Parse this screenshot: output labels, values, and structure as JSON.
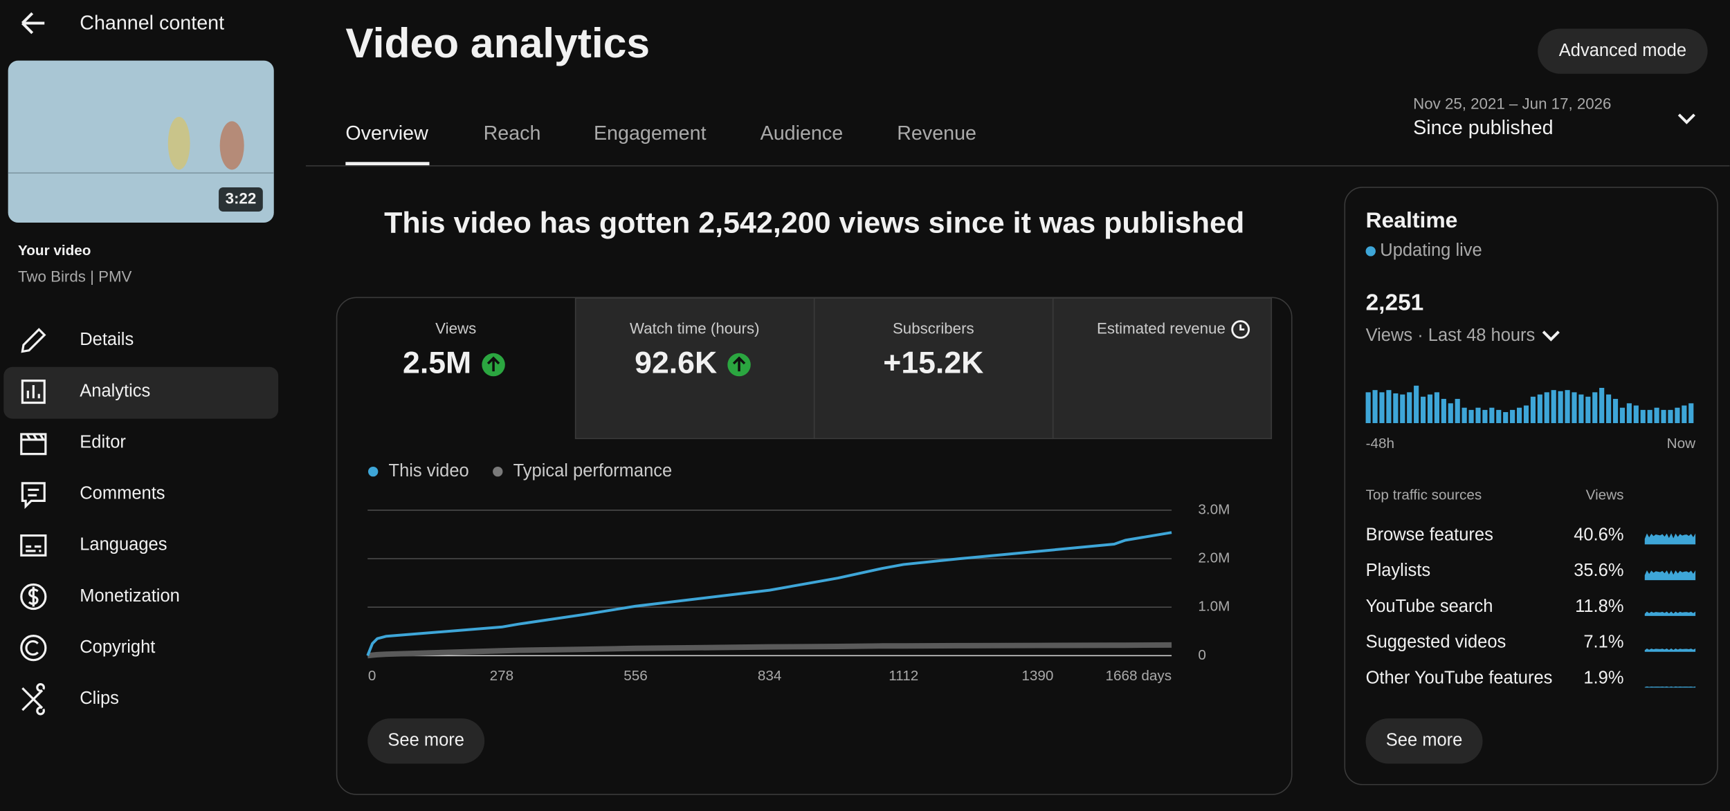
{
  "sidebar": {
    "title": "Channel content",
    "duration": "3:22",
    "video_label": "Your video",
    "video_title": "Two Birds | PMV",
    "nav": [
      "Details",
      "Analytics",
      "Editor",
      "Comments",
      "Languages",
      "Monetization",
      "Copyright",
      "Clips"
    ]
  },
  "header": {
    "title": "Video analytics",
    "button": "Advanced mode",
    "tabs": [
      "Overview",
      "Reach",
      "Engagement",
      "Audience",
      "Revenue"
    ],
    "date_range": "Nov 25, 2021 – Jun 17, 2026",
    "period": "Since published"
  },
  "headline": "This video has gotten 2,542,200 views since it was published",
  "metrics": [
    {
      "label": "Views",
      "value": "2.5M"
    },
    {
      "label": "Watch time (hours)",
      "value": "92.6K"
    },
    {
      "label": "Subscribers",
      "value": "+15.2K"
    },
    {
      "label": "Estimated revenue"
    }
  ],
  "chart": {
    "type": "line",
    "x": [
      0,
      10,
      20,
      39,
      278,
      313,
      450,
      556,
      834,
      976,
      1068,
      1112,
      1229,
      1390,
      1549,
      1572,
      1668
    ],
    "series": [
      {
        "name": "This video",
        "color": "#3ea6d8",
        "values": [
          0,
          250000,
          350000,
          400000,
          590000,
          650000,
          850000,
          1020000,
          1350000,
          1600000,
          1800000,
          1880000,
          2000000,
          2150000,
          2300000,
          2380000,
          2540000
        ]
      },
      {
        "name": "Typical performance",
        "color": "#5a5a5a",
        "values": [
          0,
          10000,
          20000,
          30000,
          100000,
          110000,
          130000,
          150000,
          180000,
          190000,
          200000,
          200000,
          205000,
          210000,
          215000,
          215000,
          220000
        ]
      }
    ],
    "xlim": [
      0,
      1668
    ],
    "xticks": [
      0,
      278,
      556,
      834,
      1112,
      1390,
      {
        "value": 1668,
        "label": "1668 days"
      }
    ],
    "ylim": [
      0,
      3000000
    ],
    "yticks": [
      0,
      {
        "value": 1000000,
        "label": "1.0M"
      },
      {
        "value": 2000000,
        "label": "2.0M"
      },
      {
        "value": 3000000,
        "label": "3.0M"
      }
    ],
    "grid": true,
    "button": "See more"
  },
  "realtime": {
    "title": "Realtime",
    "status": "Updating live",
    "count": "2,251",
    "period": "Views · Last 48 hours",
    "bars": {
      "color": "#3ea6d8",
      "values": [
        28,
        30,
        28,
        30,
        27,
        26,
        28,
        34,
        24,
        26,
        28,
        22,
        18,
        22,
        14,
        12,
        14,
        12,
        14,
        12,
        10,
        12,
        14,
        16,
        24,
        26,
        28,
        30,
        29,
        30,
        28,
        26,
        24,
        28,
        32,
        26,
        22,
        14,
        18,
        16,
        12,
        12,
        14,
        12,
        12,
        14,
        16,
        18
      ]
    },
    "start_label": "-48h",
    "end_label": "Now",
    "sources_title": "Top traffic sources",
    "sources_column": "Views",
    "sources": [
      [
        "Browse features",
        "40.6%"
      ],
      [
        "Playlists",
        "35.6%"
      ],
      [
        "YouTube search",
        "11.8%"
      ],
      [
        "Suggested videos",
        "7.1%"
      ],
      [
        "Other YouTube features",
        "1.9%"
      ]
    ],
    "button": "See more"
  }
}
